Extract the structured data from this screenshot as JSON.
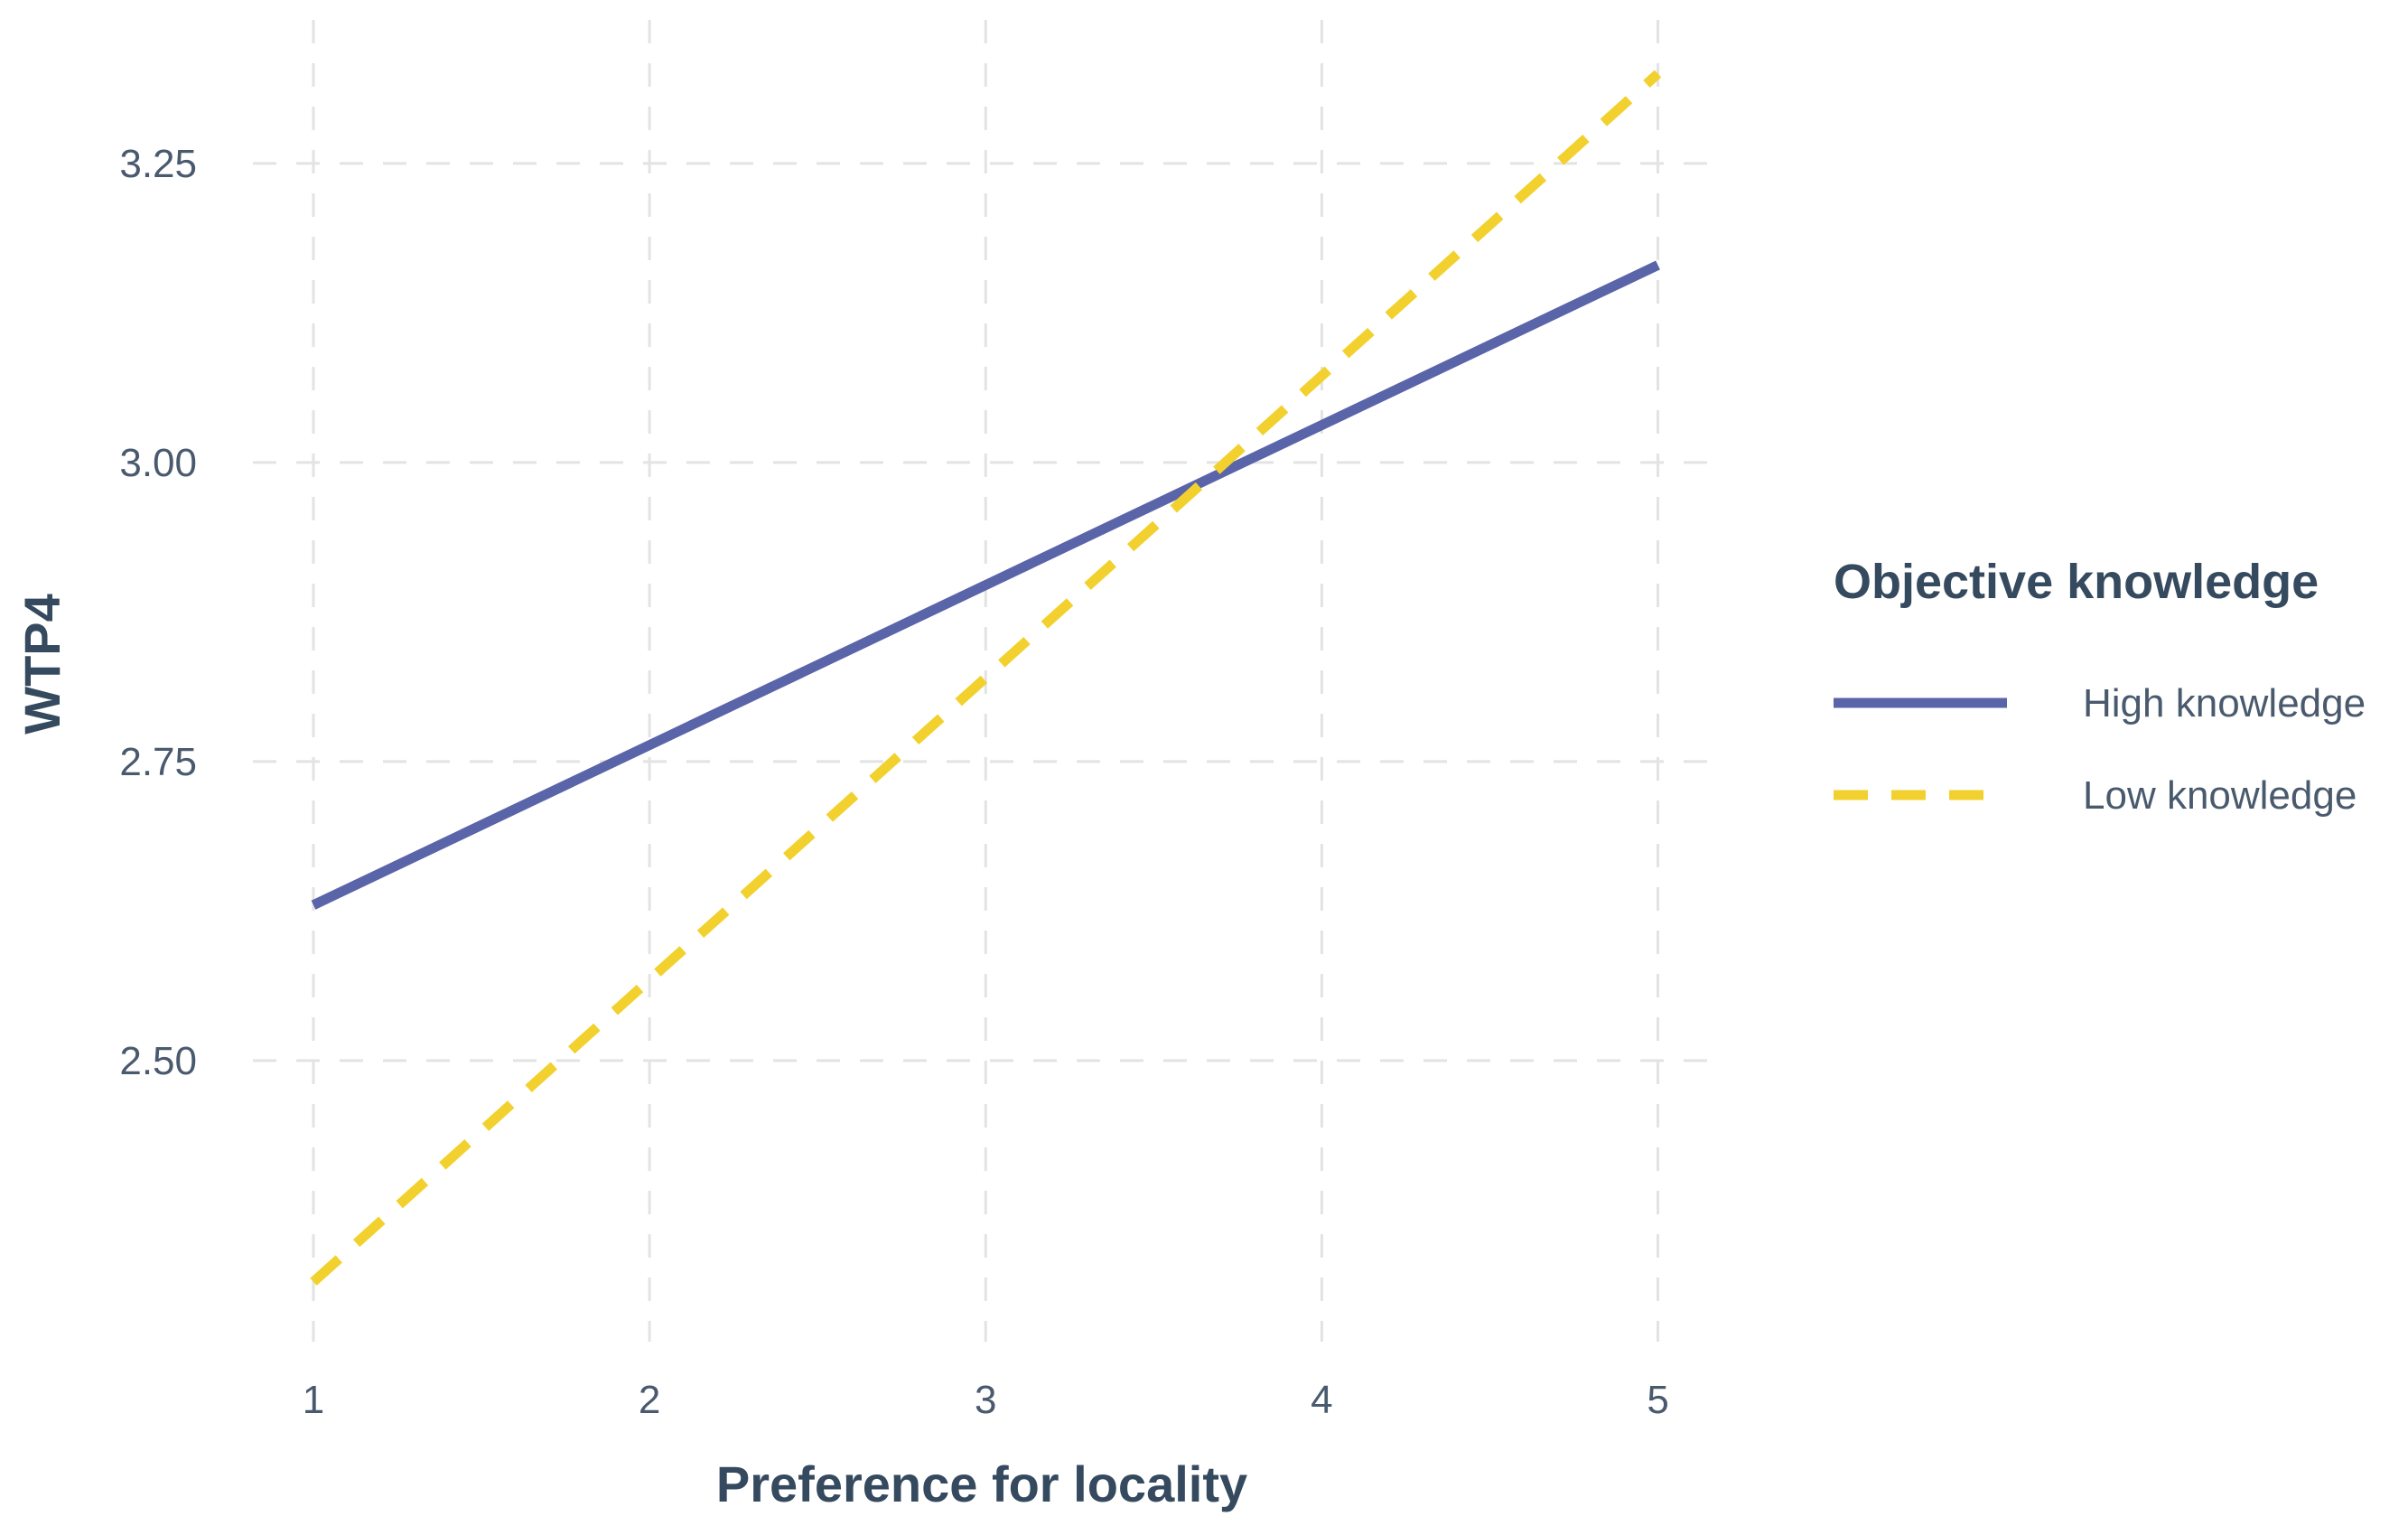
{
  "chart_data": {
    "type": "line",
    "xlabel": "Preference for locality",
    "ylabel": "WTP4",
    "x": [
      1,
      5
    ],
    "x_ticks": [
      1,
      2,
      3,
      4,
      5
    ],
    "x_tick_labels": [
      "1",
      "2",
      "3",
      "4",
      "5"
    ],
    "y_ticks": [
      2.5,
      2.75,
      3.0,
      3.25
    ],
    "y_tick_labels": [
      "2.50",
      "2.75",
      "3.00",
      "3.25"
    ],
    "xlim": [
      0.82,
      5.2
    ],
    "ylim": [
      2.265,
      3.37
    ],
    "grid": true,
    "legend": {
      "title": "Objective knowledge",
      "position": "right"
    },
    "series": [
      {
        "name": "High knowledge",
        "values": [
          2.63,
          3.165
        ],
        "color": "#5a64a8",
        "line_style": "solid"
      },
      {
        "name": "Low knowledge",
        "values": [
          2.315,
          3.325
        ],
        "color": "#f2d12e",
        "line_style": "dashed"
      }
    ]
  }
}
